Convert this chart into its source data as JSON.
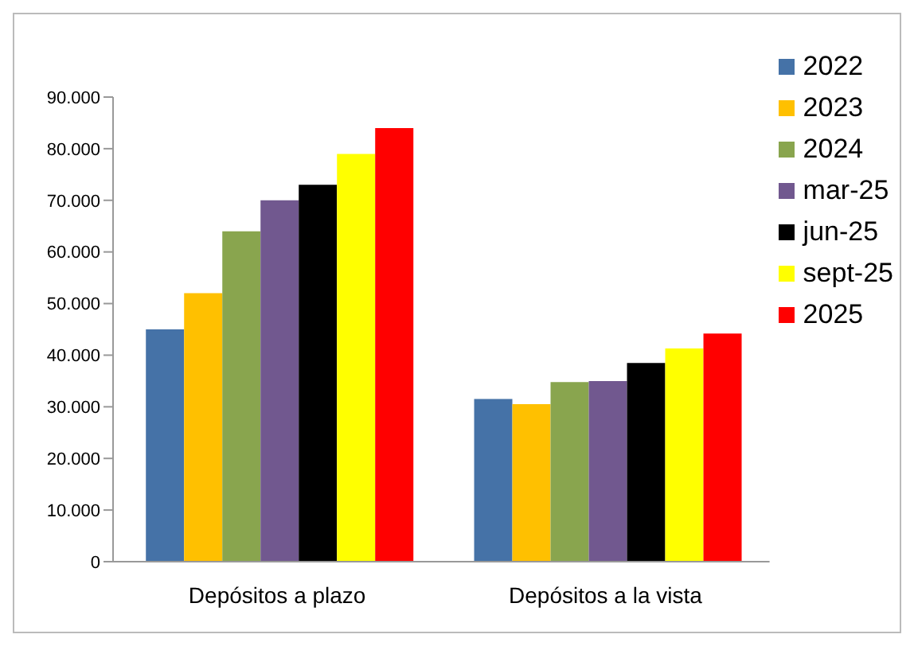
{
  "chart_data": {
    "type": "bar",
    "categories": [
      "Depósitos a plazo",
      "Depósitos a la vista"
    ],
    "series": [
      {
        "name": "2022",
        "color": "#4572a7",
        "values": [
          45000,
          31500
        ]
      },
      {
        "name": "2023",
        "color": "#ffc000",
        "values": [
          52000,
          30500
        ]
      },
      {
        "name": "2024",
        "color": "#89a54e",
        "values": [
          64000,
          34800
        ]
      },
      {
        "name": "mar-25",
        "color": "#71588f",
        "values": [
          70000,
          35000
        ]
      },
      {
        "name": "jun-25",
        "color": "#000000",
        "values": [
          73000,
          38500
        ]
      },
      {
        "name": "sept-25",
        "color": "#ffff00",
        "values": [
          79000,
          41300
        ]
      },
      {
        "name": "2025",
        "color": "#ff0000",
        "values": [
          84000,
          44200
        ]
      }
    ],
    "ylim": [
      0,
      90000
    ],
    "yticks": [
      {
        "value": 0,
        "label": "0"
      },
      {
        "value": 10000,
        "label": "10.000"
      },
      {
        "value": 20000,
        "label": "20.000"
      },
      {
        "value": 30000,
        "label": "30.000"
      },
      {
        "value": 40000,
        "label": "40.000"
      },
      {
        "value": 50000,
        "label": "50.000"
      },
      {
        "value": 60000,
        "label": "60.000"
      },
      {
        "value": 70000,
        "label": "70.000"
      },
      {
        "value": 80000,
        "label": "80.000"
      },
      {
        "value": 90000,
        "label": "90.000"
      }
    ],
    "grid": false,
    "legend": "right"
  }
}
